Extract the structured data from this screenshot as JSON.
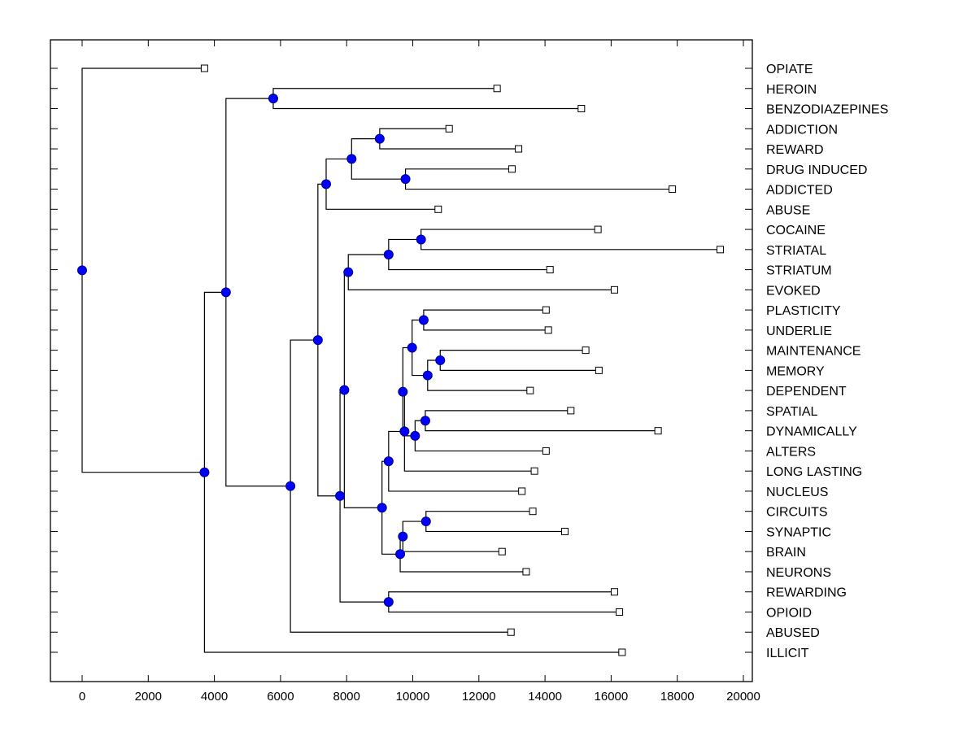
{
  "chart_data": {
    "type": "dendrogram",
    "title": "",
    "xlabel": "",
    "ylabel": "",
    "xlim": [
      -1000,
      20300
    ],
    "xticks": [
      0,
      2000,
      4000,
      6000,
      8000,
      10000,
      12000,
      14000,
      16000,
      18000,
      20000
    ],
    "xtick_labels": [
      "0",
      "2000",
      "4000",
      "6000",
      "8000",
      "10000",
      "12000",
      "14000",
      "16000",
      "18000",
      "20000"
    ],
    "grid": false,
    "colors": {
      "node": "#0000ff",
      "line": "#000000",
      "leaf_fill": "#ffffff"
    },
    "leaves": [
      {
        "label": "OPIATE",
        "x": 3700
      },
      {
        "label": "HEROIN",
        "x": 12550
      },
      {
        "label": "BENZODIAZEPINES",
        "x": 15100
      },
      {
        "label": "ADDICTION",
        "x": 11100
      },
      {
        "label": "REWARD",
        "x": 13200
      },
      {
        "label": "DRUG INDUCED",
        "x": 13000
      },
      {
        "label": "ADDICTED",
        "x": 17850
      },
      {
        "label": "ABUSE",
        "x": 10770
      },
      {
        "label": "COCAINE",
        "x": 15600
      },
      {
        "label": "STRIATAL",
        "x": 19300
      },
      {
        "label": "STRIATUM",
        "x": 14150
      },
      {
        "label": "EVOKED",
        "x": 16100
      },
      {
        "label": "PLASTICITY",
        "x": 14030
      },
      {
        "label": "UNDERLIE",
        "x": 14100
      },
      {
        "label": "MAINTENANCE",
        "x": 15230
      },
      {
        "label": "MEMORY",
        "x": 15630
      },
      {
        "label": "DEPENDENT",
        "x": 13550
      },
      {
        "label": "SPATIAL",
        "x": 14780
      },
      {
        "label": "DYNAMICALLY",
        "x": 17420
      },
      {
        "label": "ALTERS",
        "x": 14030
      },
      {
        "label": "LONG LASTING",
        "x": 13680
      },
      {
        "label": "NUCLEUS",
        "x": 13300
      },
      {
        "label": "CIRCUITS",
        "x": 13630
      },
      {
        "label": "SYNAPTIC",
        "x": 14600
      },
      {
        "label": "BRAIN",
        "x": 12700
      },
      {
        "label": "NEURONS",
        "x": 13430
      },
      {
        "label": "REWARDING",
        "x": 16100
      },
      {
        "label": "OPIOID",
        "x": 16250
      },
      {
        "label": "ABUSED",
        "x": 12970
      },
      {
        "label": "ILLICIT",
        "x": 16330
      }
    ],
    "merges": [
      {
        "id": "n_her_ben",
        "x": 5780,
        "children": [
          "L1",
          "L2"
        ]
      },
      {
        "id": "n_add_rew",
        "x": 9000,
        "children": [
          "L3",
          "L4"
        ]
      },
      {
        "id": "n_drug_addicted",
        "x": 9780,
        "children": [
          "L5",
          "L6"
        ]
      },
      {
        "id": "n_reward_grp",
        "x": 8150,
        "children": [
          "n_add_rew",
          "n_drug_addicted"
        ]
      },
      {
        "id": "n_abuse_grp",
        "x": 7380,
        "children": [
          "n_reward_grp",
          "L7"
        ]
      },
      {
        "id": "n_coc_str",
        "x": 10250,
        "children": [
          "L8",
          "L9"
        ]
      },
      {
        "id": "n_striatum",
        "x": 9270,
        "children": [
          "n_coc_str",
          "L10"
        ]
      },
      {
        "id": "n_evoked",
        "x": 8050,
        "children": [
          "n_striatum",
          "L11"
        ]
      },
      {
        "id": "n_plast_und",
        "x": 10330,
        "children": [
          "L12",
          "L13"
        ]
      },
      {
        "id": "n_maint_mem",
        "x": 10830,
        "children": [
          "L14",
          "L15"
        ]
      },
      {
        "id": "n_dependent",
        "x": 10450,
        "children": [
          "n_maint_mem",
          "L16"
        ]
      },
      {
        "id": "n_mem_grp",
        "x": 9980,
        "children": [
          "n_plast_und",
          "n_dependent"
        ]
      },
      {
        "id": "n_spat_dyn",
        "x": 10380,
        "children": [
          "L17",
          "L18"
        ]
      },
      {
        "id": "n_alters",
        "x": 10070,
        "children": [
          "n_spat_dyn",
          "L19"
        ]
      },
      {
        "id": "n_dyn_grp",
        "x": 9700,
        "children": [
          "n_mem_grp",
          "n_alters"
        ]
      },
      {
        "id": "n_long",
        "x": 9750,
        "children": [
          "n_dyn_grp",
          "L20"
        ]
      },
      {
        "id": "n_nucleus",
        "x": 9270,
        "children": [
          "n_long",
          "L21"
        ]
      },
      {
        "id": "n_circ_syn",
        "x": 10400,
        "children": [
          "L22",
          "L23"
        ]
      },
      {
        "id": "n_brain",
        "x": 9700,
        "children": [
          "n_circ_syn",
          "L24"
        ]
      },
      {
        "id": "n_neurons",
        "x": 9620,
        "children": [
          "n_brain",
          "L25"
        ]
      },
      {
        "id": "n_neuro_grp",
        "x": 9070,
        "children": [
          "n_nucleus",
          "n_neurons"
        ]
      },
      {
        "id": "n_big_mid",
        "x": 7930,
        "children": [
          "n_evoked",
          "n_neuro_grp"
        ]
      },
      {
        "id": "n_rew_opi",
        "x": 9270,
        "children": [
          "L26",
          "L27"
        ]
      },
      {
        "id": "n_opioid_grp",
        "x": 7800,
        "children": [
          "n_big_mid",
          "n_rew_opi"
        ]
      },
      {
        "id": "n_core",
        "x": 7130,
        "children": [
          "n_abuse_grp",
          "n_opioid_grp"
        ]
      },
      {
        "id": "n_abused",
        "x": 6300,
        "children": [
          "n_core",
          "L28"
        ]
      },
      {
        "id": "n_heroin_grp",
        "x": 4350,
        "children": [
          "n_her_ben",
          "n_abused"
        ]
      },
      {
        "id": "n_illicit",
        "x": 3700,
        "children": [
          "n_heroin_grp",
          "L29"
        ]
      },
      {
        "id": "n_root",
        "x": 0,
        "children": [
          "L0",
          "n_illicit"
        ]
      }
    ]
  }
}
